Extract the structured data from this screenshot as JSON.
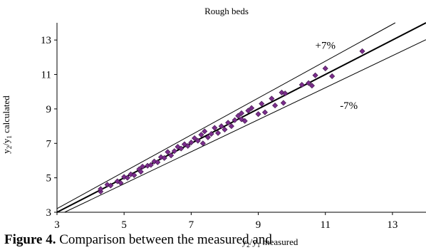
{
  "chart_data": {
    "type": "scatter",
    "title": "Rough beds",
    "xlabel": "y2/y1 measured",
    "ylabel": "y2/y1 calculated",
    "xlim": [
      3,
      14
    ],
    "ylim": [
      3,
      14
    ],
    "x_ticks": [
      "3",
      "5",
      "7",
      "9",
      "11",
      "13"
    ],
    "y_ticks": [
      "3",
      "5",
      "7",
      "9",
      "11",
      "13"
    ],
    "grid": false,
    "lines": [
      {
        "name": "perfect agreement",
        "slope": 1.0,
        "label": ""
      },
      {
        "name": "upper bound",
        "slope": 1.07,
        "label": "+7%"
      },
      {
        "name": "lower bound",
        "slope": 0.93,
        "label": "-7%"
      }
    ],
    "marker_color": "#7b2d8c",
    "points": [
      [
        4.3,
        4.2
      ],
      [
        4.3,
        4.35
      ],
      [
        4.5,
        4.6
      ],
      [
        4.6,
        4.55
      ],
      [
        4.8,
        4.8
      ],
      [
        4.9,
        4.7
      ],
      [
        5.0,
        5.05
      ],
      [
        5.1,
        5.0
      ],
      [
        5.2,
        5.2
      ],
      [
        5.3,
        5.15
      ],
      [
        5.45,
        5.5
      ],
      [
        5.5,
        5.35
      ],
      [
        5.55,
        5.65
      ],
      [
        5.7,
        5.7
      ],
      [
        5.8,
        5.75
      ],
      [
        5.9,
        5.95
      ],
      [
        6.0,
        5.9
      ],
      [
        6.1,
        6.2
      ],
      [
        6.2,
        6.15
      ],
      [
        6.3,
        6.5
      ],
      [
        6.4,
        6.3
      ],
      [
        6.5,
        6.55
      ],
      [
        6.6,
        6.8
      ],
      [
        6.7,
        6.7
      ],
      [
        6.8,
        6.95
      ],
      [
        6.9,
        6.85
      ],
      [
        7.0,
        7.05
      ],
      [
        7.1,
        7.3
      ],
      [
        7.2,
        7.15
      ],
      [
        7.3,
        7.5
      ],
      [
        7.35,
        7.0
      ],
      [
        7.4,
        7.7
      ],
      [
        7.5,
        7.35
      ],
      [
        7.6,
        7.55
      ],
      [
        7.7,
        7.9
      ],
      [
        7.8,
        7.6
      ],
      [
        7.9,
        8.0
      ],
      [
        8.0,
        7.8
      ],
      [
        8.1,
        8.2
      ],
      [
        8.2,
        8.0
      ],
      [
        8.3,
        8.35
      ],
      [
        8.4,
        8.6
      ],
      [
        8.5,
        8.4
      ],
      [
        8.5,
        8.75
      ],
      [
        8.6,
        8.3
      ],
      [
        8.7,
        8.9
      ],
      [
        8.8,
        9.05
      ],
      [
        9.0,
        8.7
      ],
      [
        9.1,
        9.3
      ],
      [
        9.2,
        8.8
      ],
      [
        9.4,
        9.6
      ],
      [
        9.5,
        9.2
      ],
      [
        9.7,
        9.95
      ],
      [
        9.75,
        9.35
      ],
      [
        9.8,
        9.9
      ],
      [
        10.3,
        10.4
      ],
      [
        10.5,
        10.5
      ],
      [
        10.6,
        10.35
      ],
      [
        10.7,
        10.95
      ],
      [
        11.0,
        11.35
      ],
      [
        11.2,
        10.9
      ],
      [
        12.1,
        12.35
      ]
    ]
  },
  "caption": {
    "bold": "Figure 4.",
    "text": " Comparison between the measured and"
  }
}
